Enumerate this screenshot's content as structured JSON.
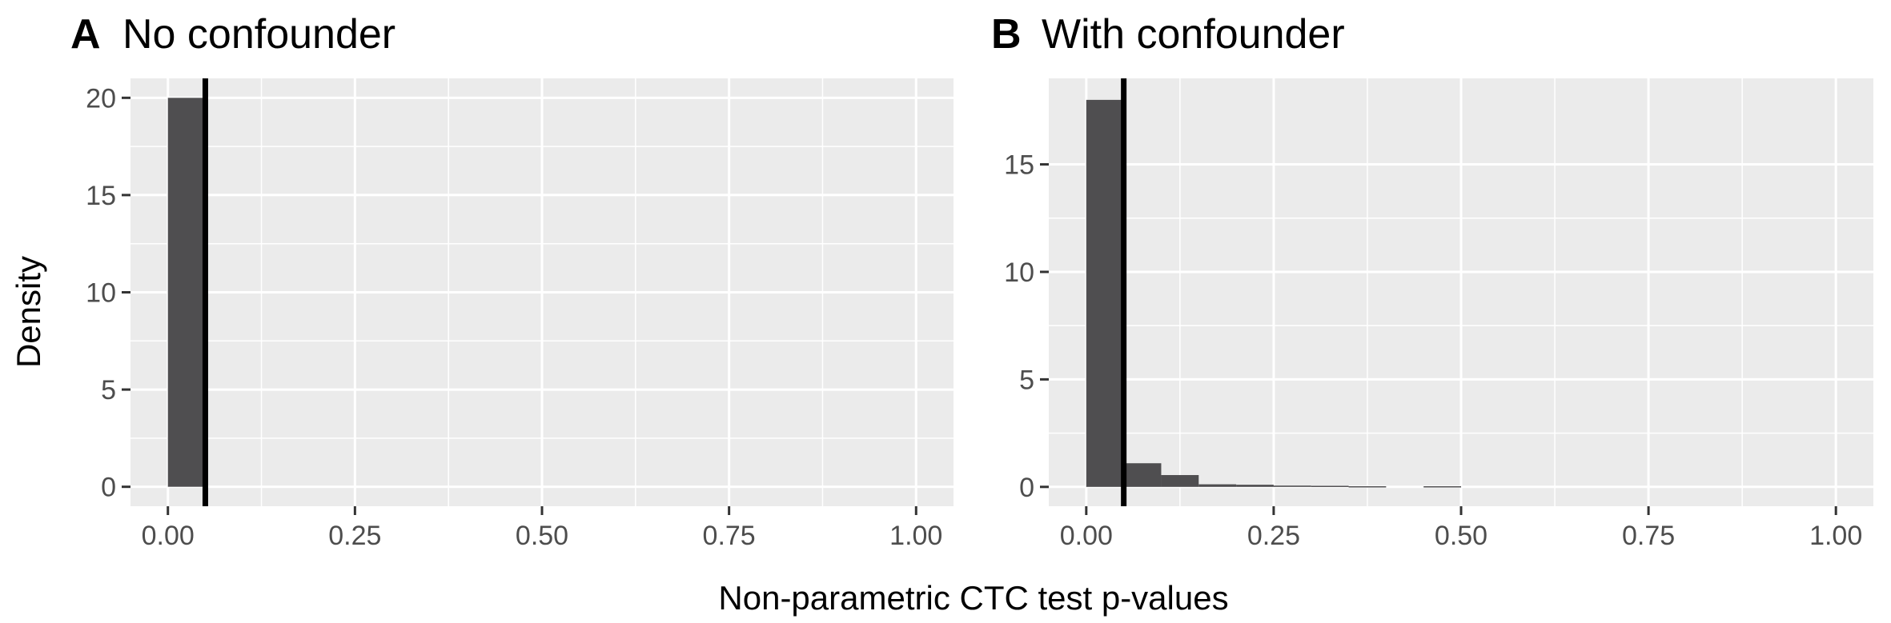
{
  "chart_data": {
    "type": "histogram",
    "xlabel": "Non-parametric CTC test p-values",
    "ylabel": "Density",
    "bin_width": 0.05,
    "reference_line_x": 0.05,
    "grid": true,
    "colors": {
      "bar": "#4f4e50",
      "panel_bg": "#ebebeb",
      "grid": "#ffffff",
      "reference_line": "#000000"
    },
    "xlim": [
      -0.05,
      1.05
    ],
    "x_ticks": [
      0,
      0.25,
      0.5,
      0.75,
      1
    ],
    "x_tick_labels": [
      "0.00",
      "0.25",
      "0.50",
      "0.75",
      "1.00"
    ],
    "panels": [
      {
        "letter": "A",
        "title": "No confounder",
        "ylim": [
          -1,
          21
        ],
        "y_ticks": [
          0,
          5,
          10,
          15,
          20
        ],
        "y_tick_labels": [
          "0",
          "5",
          "10",
          "15",
          "20"
        ],
        "bins": [
          {
            "x0": 0.0,
            "x1": 0.05,
            "density": 20.0
          }
        ]
      },
      {
        "letter": "B",
        "title": "With confounder",
        "ylim": [
          -0.9,
          19
        ],
        "y_ticks": [
          0,
          5,
          10,
          15
        ],
        "y_tick_labels": [
          "0",
          "5",
          "10",
          "15"
        ],
        "bins": [
          {
            "x0": 0.0,
            "x1": 0.05,
            "density": 18.0
          },
          {
            "x0": 0.05,
            "x1": 0.1,
            "density": 1.1
          },
          {
            "x0": 0.1,
            "x1": 0.15,
            "density": 0.55
          },
          {
            "x0": 0.15,
            "x1": 0.2,
            "density": 0.12
          },
          {
            "x0": 0.2,
            "x1": 0.25,
            "density": 0.1
          },
          {
            "x0": 0.25,
            "x1": 0.3,
            "density": 0.06
          },
          {
            "x0": 0.3,
            "x1": 0.35,
            "density": 0.05
          },
          {
            "x0": 0.35,
            "x1": 0.4,
            "density": 0.03
          },
          {
            "x0": 0.4,
            "x1": 0.45,
            "density": 0.0
          },
          {
            "x0": 0.45,
            "x1": 0.5,
            "density": 0.03
          }
        ]
      }
    ]
  }
}
